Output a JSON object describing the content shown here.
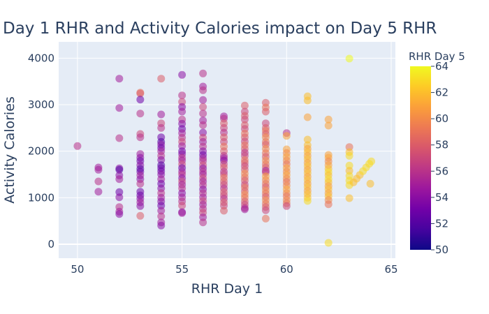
{
  "chart_data": {
    "type": "scatter",
    "title": "Day 1 RHR and Activity Calories impact on Day 5 RHR",
    "xlabel": "RHR Day 1",
    "ylabel": "Activity Calories",
    "xlim": [
      49.1,
      65.2
    ],
    "ylim": [
      -300,
      4350
    ],
    "x_ticks": [
      50,
      55,
      60,
      65
    ],
    "y_ticks": [
      0,
      1000,
      2000,
      3000,
      4000
    ],
    "grid": true,
    "plot_background": "#e5ecf6",
    "colorbar": {
      "title": "RHR Day 5",
      "range": [
        50,
        64
      ],
      "ticks": [
        50,
        52,
        54,
        56,
        58,
        60,
        62,
        64
      ],
      "colorscale": [
        "#0d0887",
        "#46039f",
        "#7201a8",
        "#9c179e",
        "#bd3786",
        "#d8576b",
        "#ed7953",
        "#fb9f3a",
        "#fdca26",
        "#f0f921"
      ]
    },
    "points": [
      [
        50,
        2110,
        56
      ],
      [
        51,
        1650,
        55
      ],
      [
        51,
        1600,
        55
      ],
      [
        51,
        1350,
        56
      ],
      [
        51,
        1130,
        55
      ],
      [
        52,
        3560,
        55
      ],
      [
        52,
        2930,
        55
      ],
      [
        52,
        2280,
        56
      ],
      [
        52,
        1630,
        54
      ],
      [
        52,
        1600,
        52
      ],
      [
        52,
        1480,
        54
      ],
      [
        52,
        1400,
        55
      ],
      [
        52,
        1120,
        53
      ],
      [
        52,
        1010,
        54
      ],
      [
        52,
        800,
        56
      ],
      [
        52,
        700,
        55
      ],
      [
        52,
        650,
        54
      ],
      [
        53,
        3260,
        59
      ],
      [
        53,
        3240,
        58
      ],
      [
        53,
        3110,
        53
      ],
      [
        53,
        2810,
        56
      ],
      [
        53,
        2370,
        57
      ],
      [
        53,
        2300,
        56
      ],
      [
        53,
        1940,
        55
      ],
      [
        53,
        1860,
        54
      ],
      [
        53,
        1790,
        53
      ],
      [
        53,
        1700,
        54
      ],
      [
        53,
        1620,
        52
      ],
      [
        53,
        1560,
        53
      ],
      [
        53,
        1480,
        55
      ],
      [
        53,
        1400,
        54
      ],
      [
        53,
        1300,
        56
      ],
      [
        53,
        1130,
        53
      ],
      [
        53,
        1050,
        53
      ],
      [
        53,
        980,
        54
      ],
      [
        53,
        900,
        55
      ],
      [
        53,
        820,
        54
      ],
      [
        53,
        610,
        58
      ],
      [
        54,
        3560,
        58
      ],
      [
        54,
        2790,
        55
      ],
      [
        54,
        2600,
        57
      ],
      [
        54,
        2500,
        56
      ],
      [
        54,
        2300,
        53
      ],
      [
        54,
        2200,
        52
      ],
      [
        54,
        2140,
        54
      ],
      [
        54,
        2070,
        53
      ],
      [
        54,
        2000,
        55
      ],
      [
        54,
        1900,
        56
      ],
      [
        54,
        1810,
        54
      ],
      [
        54,
        1700,
        52
      ],
      [
        54,
        1640,
        53
      ],
      [
        54,
        1570,
        53
      ],
      [
        54,
        1500,
        54
      ],
      [
        54,
        1400,
        55
      ],
      [
        54,
        1300,
        53
      ],
      [
        54,
        1200,
        54
      ],
      [
        54,
        1100,
        56
      ],
      [
        54,
        1000,
        55
      ],
      [
        54,
        920,
        54
      ],
      [
        54,
        830,
        53
      ],
      [
        54,
        720,
        55
      ],
      [
        54,
        600,
        56
      ],
      [
        54,
        470,
        55
      ],
      [
        54,
        400,
        54
      ],
      [
        55,
        3640,
        54
      ],
      [
        55,
        3200,
        56
      ],
      [
        55,
        3060,
        57
      ],
      [
        55,
        2950,
        54
      ],
      [
        55,
        2850,
        55
      ],
      [
        55,
        2680,
        56
      ],
      [
        55,
        2590,
        54
      ],
      [
        55,
        2480,
        53
      ],
      [
        55,
        2390,
        55
      ],
      [
        55,
        2290,
        56
      ],
      [
        55,
        2200,
        57
      ],
      [
        55,
        2110,
        55
      ],
      [
        55,
        2000,
        53
      ],
      [
        55,
        1940,
        54
      ],
      [
        55,
        1860,
        56
      ],
      [
        55,
        1800,
        55
      ],
      [
        55,
        1720,
        57
      ],
      [
        55,
        1640,
        53
      ],
      [
        55,
        1560,
        55
      ],
      [
        55,
        1500,
        56
      ],
      [
        55,
        1420,
        54
      ],
      [
        55,
        1350,
        57
      ],
      [
        55,
        1280,
        55
      ],
      [
        55,
        1200,
        56
      ],
      [
        55,
        1100,
        54
      ],
      [
        55,
        1010,
        55
      ],
      [
        55,
        920,
        56
      ],
      [
        55,
        830,
        57
      ],
      [
        55,
        690,
        54
      ],
      [
        55,
        670,
        55
      ],
      [
        56,
        3670,
        56
      ],
      [
        56,
        3390,
        55
      ],
      [
        56,
        3310,
        56
      ],
      [
        56,
        3100,
        55
      ],
      [
        56,
        2950,
        57
      ],
      [
        56,
        2810,
        56
      ],
      [
        56,
        2660,
        55
      ],
      [
        56,
        2560,
        56
      ],
      [
        56,
        2400,
        54
      ],
      [
        56,
        2290,
        57
      ],
      [
        56,
        2200,
        55
      ],
      [
        56,
        2100,
        56
      ],
      [
        56,
        2000,
        54
      ],
      [
        56,
        1920,
        53
      ],
      [
        56,
        1850,
        55
      ],
      [
        56,
        1790,
        56
      ],
      [
        56,
        1700,
        57
      ],
      [
        56,
        1630,
        54
      ],
      [
        56,
        1560,
        56
      ],
      [
        56,
        1500,
        55
      ],
      [
        56,
        1420,
        57
      ],
      [
        56,
        1350,
        55
      ],
      [
        56,
        1270,
        56
      ],
      [
        56,
        1180,
        54
      ],
      [
        56,
        1100,
        56
      ],
      [
        56,
        1010,
        55
      ],
      [
        56,
        930,
        57
      ],
      [
        56,
        850,
        55
      ],
      [
        56,
        760,
        56
      ],
      [
        56,
        680,
        57
      ],
      [
        56,
        580,
        55
      ],
      [
        56,
        470,
        56
      ],
      [
        57,
        2750,
        55
      ],
      [
        57,
        2700,
        56
      ],
      [
        57,
        2600,
        58
      ],
      [
        57,
        2500,
        57
      ],
      [
        57,
        2400,
        56
      ],
      [
        57,
        2300,
        58
      ],
      [
        57,
        2200,
        57
      ],
      [
        57,
        2100,
        59
      ],
      [
        57,
        2000,
        58
      ],
      [
        57,
        1900,
        56
      ],
      [
        57,
        1850,
        55
      ],
      [
        57,
        1800,
        54
      ],
      [
        57,
        1720,
        57
      ],
      [
        57,
        1650,
        58
      ],
      [
        57,
        1560,
        56
      ],
      [
        57,
        1500,
        57
      ],
      [
        57,
        1430,
        59
      ],
      [
        57,
        1350,
        58
      ],
      [
        57,
        1280,
        57
      ],
      [
        57,
        1200,
        56
      ],
      [
        57,
        1120,
        58
      ],
      [
        57,
        1050,
        57
      ],
      [
        57,
        980,
        56
      ],
      [
        57,
        900,
        58
      ],
      [
        57,
        830,
        57
      ],
      [
        57,
        720,
        58
      ],
      [
        58,
        2980,
        58
      ],
      [
        58,
        2850,
        57
      ],
      [
        58,
        2760,
        58
      ],
      [
        58,
        2680,
        57
      ],
      [
        58,
        2560,
        58
      ],
      [
        58,
        2480,
        57
      ],
      [
        58,
        2380,
        59
      ],
      [
        58,
        2300,
        58
      ],
      [
        58,
        2210,
        57
      ],
      [
        58,
        2130,
        59
      ],
      [
        58,
        2050,
        58
      ],
      [
        58,
        1970,
        56
      ],
      [
        58,
        1900,
        57
      ],
      [
        58,
        1810,
        59
      ],
      [
        58,
        1750,
        58
      ],
      [
        58,
        1680,
        57
      ],
      [
        58,
        1600,
        58
      ],
      [
        58,
        1520,
        60
      ],
      [
        58,
        1440,
        59
      ],
      [
        58,
        1370,
        58
      ],
      [
        58,
        1280,
        57
      ],
      [
        58,
        1220,
        59
      ],
      [
        58,
        1140,
        58
      ],
      [
        58,
        1070,
        60
      ],
      [
        58,
        1000,
        59
      ],
      [
        58,
        920,
        58
      ],
      [
        58,
        850,
        57
      ],
      [
        58,
        780,
        56
      ],
      [
        58,
        750,
        55
      ],
      [
        59,
        3040,
        58
      ],
      [
        59,
        2940,
        59
      ],
      [
        59,
        2850,
        58
      ],
      [
        59,
        2600,
        57
      ],
      [
        59,
        2500,
        58
      ],
      [
        59,
        2440,
        59
      ],
      [
        59,
        2370,
        58
      ],
      [
        59,
        2300,
        60
      ],
      [
        59,
        2200,
        59
      ],
      [
        59,
        2140,
        58
      ],
      [
        59,
        2050,
        60
      ],
      [
        59,
        1960,
        59
      ],
      [
        59,
        1880,
        58
      ],
      [
        59,
        1800,
        60
      ],
      [
        59,
        1720,
        59
      ],
      [
        59,
        1650,
        58
      ],
      [
        59,
        1580,
        55
      ],
      [
        59,
        1540,
        57
      ],
      [
        59,
        1460,
        61
      ],
      [
        59,
        1380,
        60
      ],
      [
        59,
        1300,
        59
      ],
      [
        59,
        1230,
        58
      ],
      [
        59,
        1160,
        60
      ],
      [
        59,
        1090,
        59
      ],
      [
        59,
        1020,
        58
      ],
      [
        59,
        950,
        60
      ],
      [
        59,
        870,
        59
      ],
      [
        59,
        800,
        58
      ],
      [
        59,
        730,
        57
      ],
      [
        59,
        550,
        59
      ],
      [
        60,
        2390,
        56
      ],
      [
        60,
        2330,
        61
      ],
      [
        60,
        2040,
        61
      ],
      [
        60,
        1960,
        60
      ],
      [
        60,
        1880,
        61
      ],
      [
        60,
        1800,
        60
      ],
      [
        60,
        1720,
        59
      ],
      [
        60,
        1640,
        61
      ],
      [
        60,
        1560,
        60
      ],
      [
        60,
        1490,
        61
      ],
      [
        60,
        1410,
        60
      ],
      [
        60,
        1340,
        59
      ],
      [
        60,
        1260,
        60
      ],
      [
        60,
        1180,
        61
      ],
      [
        60,
        1100,
        60
      ],
      [
        60,
        1030,
        59
      ],
      [
        60,
        950,
        60
      ],
      [
        60,
        880,
        59
      ],
      [
        60,
        820,
        57
      ],
      [
        61,
        3180,
        62
      ],
      [
        61,
        3090,
        62
      ],
      [
        61,
        2730,
        61
      ],
      [
        61,
        2250,
        62
      ],
      [
        61,
        2130,
        62
      ],
      [
        61,
        2050,
        61
      ],
      [
        61,
        1980,
        62
      ],
      [
        61,
        1900,
        61
      ],
      [
        61,
        1830,
        62
      ],
      [
        61,
        1750,
        61
      ],
      [
        61,
        1680,
        62
      ],
      [
        61,
        1600,
        61
      ],
      [
        61,
        1530,
        62
      ],
      [
        61,
        1450,
        61
      ],
      [
        61,
        1380,
        62
      ],
      [
        61,
        1300,
        61
      ],
      [
        61,
        1230,
        62
      ],
      [
        61,
        1150,
        61
      ],
      [
        61,
        1080,
        62
      ],
      [
        61,
        1000,
        62
      ],
      [
        61,
        930,
        63
      ],
      [
        62,
        2680,
        61
      ],
      [
        62,
        2550,
        61
      ],
      [
        62,
        1920,
        61
      ],
      [
        62,
        1860,
        61
      ],
      [
        62,
        1780,
        60
      ],
      [
        62,
        1700,
        61
      ],
      [
        62,
        1620,
        62
      ],
      [
        62,
        1550,
        63
      ],
      [
        62,
        1480,
        62
      ],
      [
        62,
        1400,
        63
      ],
      [
        62,
        1330,
        62
      ],
      [
        62,
        1250,
        61
      ],
      [
        62,
        1180,
        62
      ],
      [
        62,
        1100,
        61
      ],
      [
        62,
        1030,
        62
      ],
      [
        62,
        950,
        60
      ],
      [
        62,
        860,
        59
      ],
      [
        62,
        30,
        63
      ],
      [
        63,
        3990,
        64
      ],
      [
        63,
        2090,
        59
      ],
      [
        63,
        1980,
        62
      ],
      [
        63,
        1900,
        63
      ],
      [
        63,
        1690,
        63
      ],
      [
        63,
        1580,
        62
      ],
      [
        63,
        1470,
        63
      ],
      [
        63,
        1370,
        63
      ],
      [
        63,
        1270,
        63
      ],
      [
        63,
        990,
        62
      ],
      [
        63.2,
        1330,
        62
      ],
      [
        63.35,
        1410,
        62
      ],
      [
        63.5,
        1490,
        62
      ],
      [
        63.65,
        1570,
        63
      ],
      [
        63.8,
        1650,
        63
      ],
      [
        63.95,
        1730,
        63
      ],
      [
        64.05,
        1780,
        63
      ],
      [
        64,
        1300,
        62
      ]
    ]
  }
}
